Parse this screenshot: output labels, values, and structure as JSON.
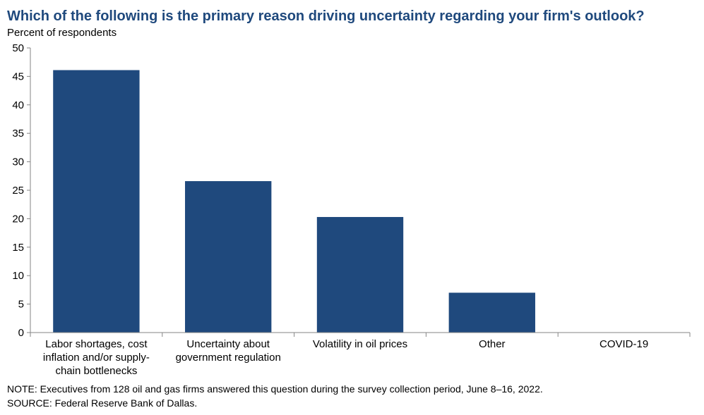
{
  "chart_data": {
    "type": "bar",
    "title": "Which of the following is the primary reason driving uncertainty regarding your firm's outlook?",
    "ylabel": "Percent of respondents",
    "xlabel": "",
    "categories": [
      [
        "Labor shortages, cost",
        "inflation and/or supply-",
        "chain bottlenecks"
      ],
      [
        "Uncertainty about",
        "government regulation"
      ],
      [
        "Volatility in oil prices"
      ],
      [
        "Other"
      ],
      [
        "COVID-19"
      ]
    ],
    "values": [
      46.1,
      26.6,
      20.3,
      7.0,
      0.0
    ],
    "ylim": [
      0,
      50
    ],
    "yticks": [
      0,
      5,
      10,
      15,
      20,
      25,
      30,
      35,
      40,
      45,
      50
    ],
    "bar_color": "#1f497d",
    "grid": false,
    "legend": "none"
  },
  "notes": {
    "note": "NOTE:  Executives  from 128 oil and gas firms answered this question during the survey collection period, June 8–16, 2022.",
    "source": "SOURCE:  Federal Reserve Bank of Dallas."
  }
}
